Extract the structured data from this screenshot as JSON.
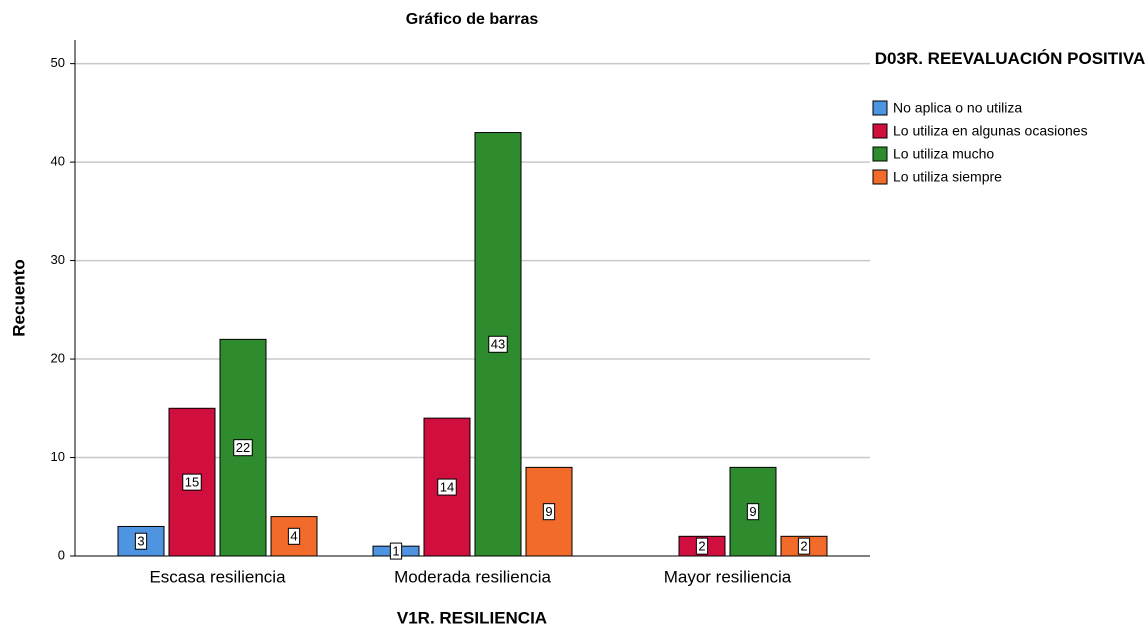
{
  "chart_data": {
    "type": "bar",
    "title": "Gráfico de barras",
    "x_label": "V1R. RESILIENCIA",
    "y_label": "Recuento",
    "legend_title": "D03R. REEVALUACIÓN POSITIVA",
    "legend": "right",
    "categories": [
      "Escasa resiliencia",
      "Moderada resiliencia",
      "Mayor resiliencia"
    ],
    "series": [
      {
        "name": "No aplica o no utiliza",
        "color": "#4f94e0",
        "values": [
          3,
          1,
          null
        ]
      },
      {
        "name": "Lo utiliza en algunas ocasiones",
        "color": "#d10f3f",
        "values": [
          15,
          14,
          2
        ]
      },
      {
        "name": "Lo utiliza mucho",
        "color": "#2e8b2e",
        "values": [
          22,
          43,
          9
        ]
      },
      {
        "name": "Lo utiliza siempre",
        "color": "#f26b2a",
        "values": [
          4,
          9,
          2
        ]
      }
    ],
    "ylim": [
      0,
      52.4
    ],
    "yticks": [
      0,
      10,
      20,
      30,
      40,
      50
    ],
    "grid": true
  }
}
